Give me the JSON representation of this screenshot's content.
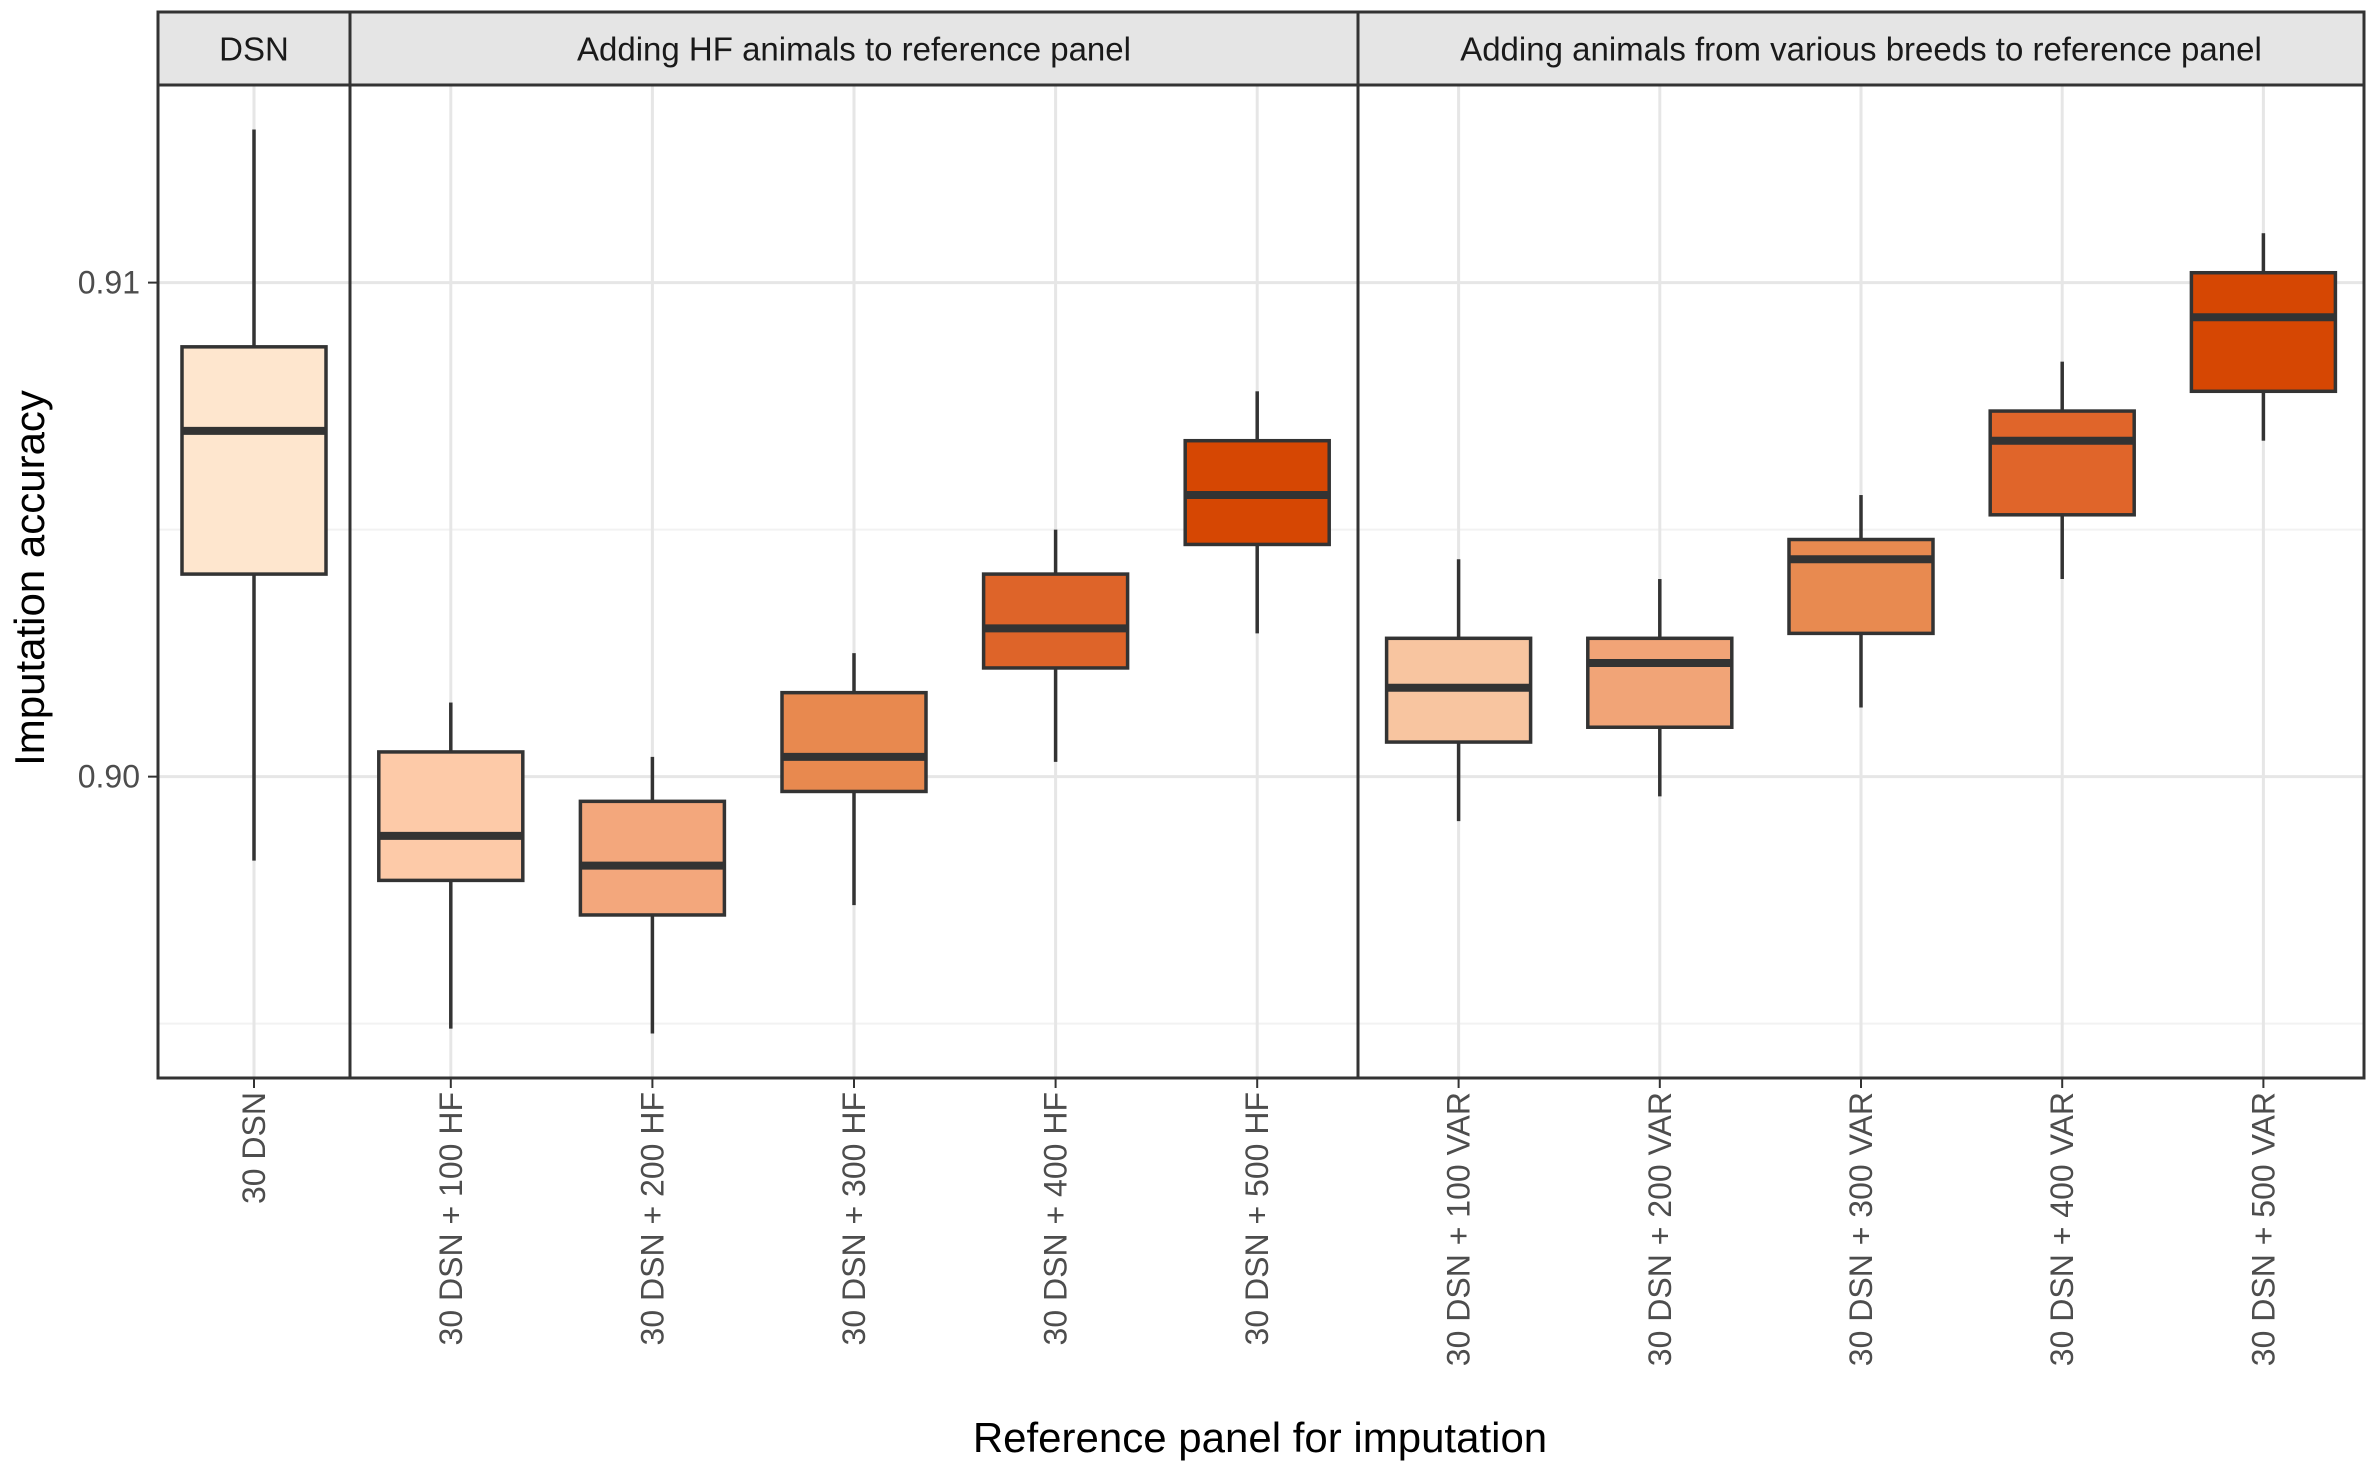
{
  "chart_data": {
    "type": "boxplot",
    "ylabel": "Imputation accuracy",
    "xlabel": "Reference panel for imputation",
    "ylim": [
      0.8939,
      0.914
    ],
    "y_ticks": [
      0.9,
      0.91
    ],
    "y_tick_labels": [
      "0.90",
      "0.91"
    ],
    "y_minor_gridlines": [
      0.895,
      0.905
    ],
    "grid": true,
    "colors": {
      "panel_border": "#333333",
      "strip_fill": "#e5e5e5",
      "grid_major": "#e6e6e6",
      "grid_minor": "#f2f2f2",
      "box_edge": "#333333"
    },
    "facets": [
      {
        "title": "DSN",
        "boxes": [
          {
            "label": "30 DSN",
            "min": 0.8983,
            "q1": 0.9041,
            "median": 0.907,
            "q3": 0.9087,
            "max": 0.9131,
            "color": "#fee6ce"
          }
        ]
      },
      {
        "title": "Adding HF animals to reference panel",
        "boxes": [
          {
            "label": "30 DSN + 100 HF",
            "min": 0.8949,
            "q1": 0.8979,
            "median": 0.8988,
            "q3": 0.9005,
            "max": 0.9015,
            "color": "#fdcaa8"
          },
          {
            "label": "30 DSN + 200 HF",
            "min": 0.8948,
            "q1": 0.8972,
            "median": 0.8982,
            "q3": 0.8995,
            "max": 0.9004,
            "color": "#f3a77c"
          },
          {
            "label": "30 DSN + 300 HF",
            "min": 0.8974,
            "q1": 0.8997,
            "median": 0.9004,
            "q3": 0.9017,
            "max": 0.9025,
            "color": "#e8894f"
          },
          {
            "label": "30 DSN + 400 HF",
            "min": 0.9003,
            "q1": 0.9022,
            "median": 0.903,
            "q3": 0.9041,
            "max": 0.905,
            "color": "#de6429"
          },
          {
            "label": "30 DSN + 500 HF",
            "min": 0.9029,
            "q1": 0.9047,
            "median": 0.9057,
            "q3": 0.9068,
            "max": 0.9078,
            "color": "#d64703"
          }
        ]
      },
      {
        "title": "Adding animals from various breeds to reference panel",
        "boxes": [
          {
            "label": "30 DSN + 100 VAR",
            "min": 0.8991,
            "q1": 0.9007,
            "median": 0.9018,
            "q3": 0.9028,
            "max": 0.9044,
            "color": "#f8c5a0"
          },
          {
            "label": "30 DSN + 200 VAR",
            "min": 0.8996,
            "q1": 0.901,
            "median": 0.9023,
            "q3": 0.9028,
            "max": 0.904,
            "color": "#f1a477"
          },
          {
            "label": "30 DSN + 300 VAR",
            "min": 0.9014,
            "q1": 0.9029,
            "median": 0.9044,
            "q3": 0.9048,
            "max": 0.9057,
            "color": "#e88a50"
          },
          {
            "label": "30 DSN + 400 VAR",
            "min": 0.904,
            "q1": 0.9053,
            "median": 0.9068,
            "q3": 0.9074,
            "max": 0.9084,
            "color": "#e0652a"
          },
          {
            "label": "30 DSN + 500 VAR",
            "min": 0.9068,
            "q1": 0.9078,
            "median": 0.9093,
            "q3": 0.9102,
            "max": 0.911,
            "color": "#d64703"
          }
        ]
      }
    ]
  }
}
